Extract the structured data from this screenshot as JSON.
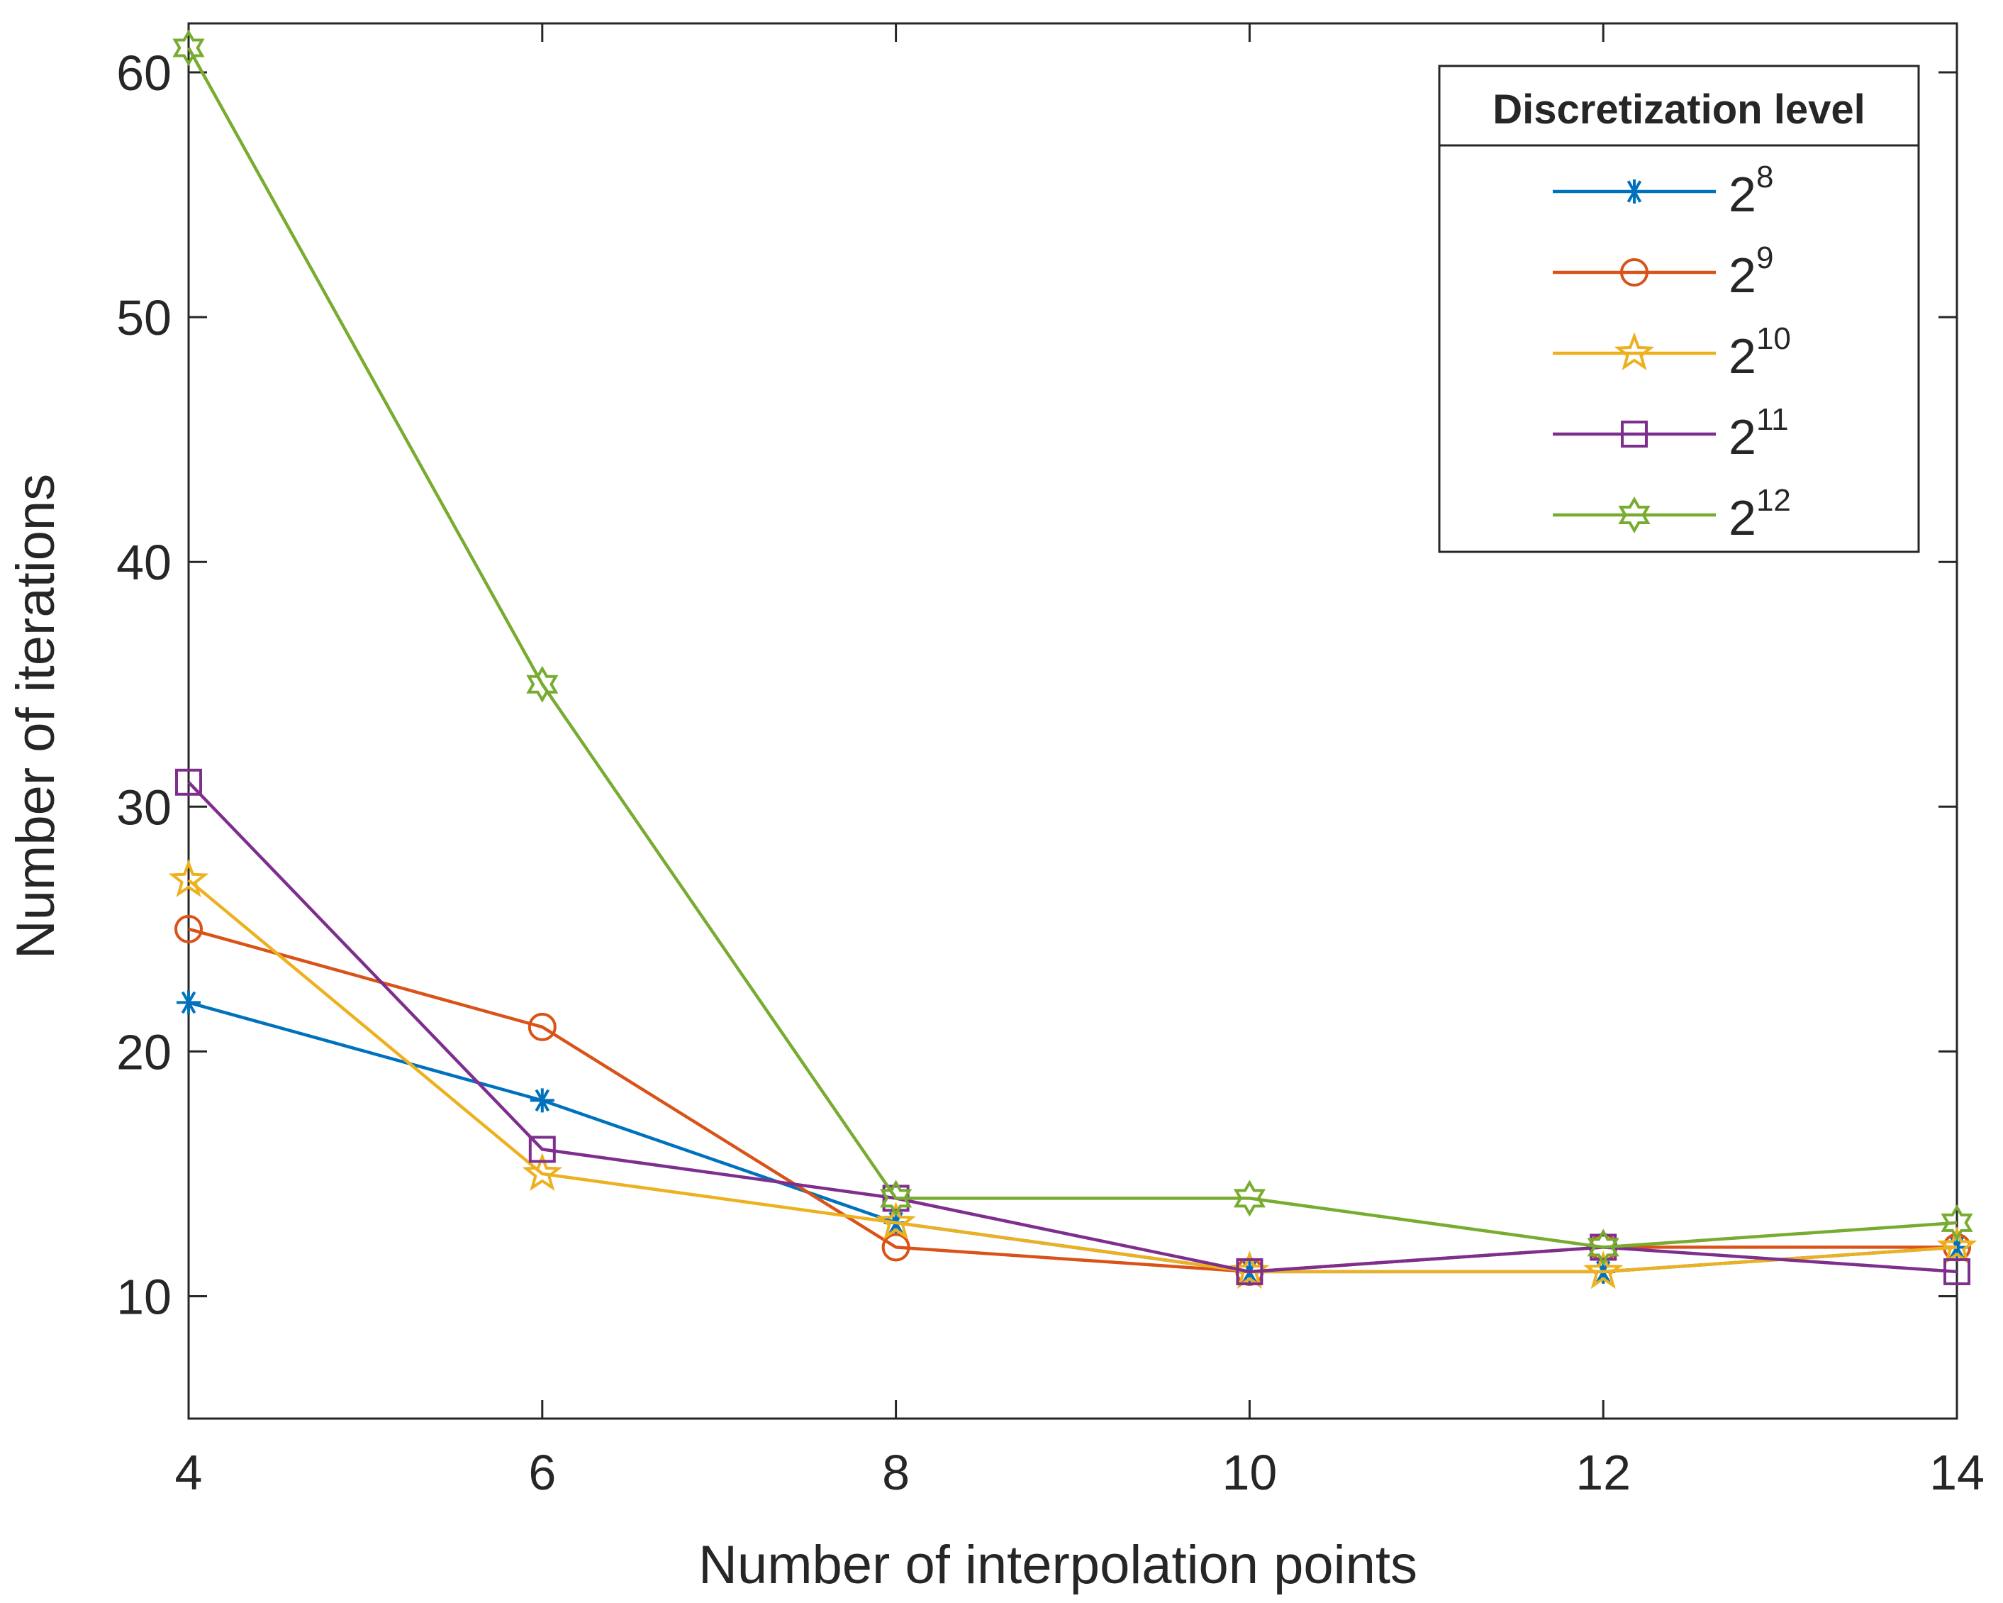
{
  "chart_data": {
    "type": "line",
    "xlabel": "Number of interpolation points",
    "ylabel": "Number of iterations",
    "xlim": [
      4,
      14
    ],
    "ylim": [
      5,
      62
    ],
    "xticks": [
      4,
      6,
      8,
      10,
      12,
      14
    ],
    "yticks": [
      10,
      20,
      30,
      40,
      50,
      60
    ],
    "grid": false,
    "legend": {
      "title": "Discretization level",
      "placement": "top-right"
    },
    "x": [
      4,
      6,
      8,
      10,
      12,
      14
    ],
    "series": [
      {
        "name": "2^8",
        "base": "2",
        "exponent": "8",
        "color": "#0072BD",
        "marker": "asterisk",
        "values": [
          22,
          18,
          13,
          11,
          11,
          12
        ]
      },
      {
        "name": "2^9",
        "base": "2",
        "exponent": "9",
        "color": "#D95319",
        "marker": "circle",
        "values": [
          25,
          21,
          12,
          11,
          12,
          12
        ]
      },
      {
        "name": "2^10",
        "base": "2",
        "exponent": "10",
        "color": "#EDB120",
        "marker": "pentagram",
        "values": [
          27,
          15,
          13,
          11,
          11,
          12
        ]
      },
      {
        "name": "2^11",
        "base": "2",
        "exponent": "11",
        "color": "#7E2F8E",
        "marker": "square",
        "values": [
          31,
          16,
          14,
          11,
          12,
          11
        ]
      },
      {
        "name": "2^12",
        "base": "2",
        "exponent": "12",
        "color": "#77AC30",
        "marker": "hexagram",
        "values": [
          61,
          35,
          14,
          14,
          12,
          13
        ]
      }
    ]
  }
}
